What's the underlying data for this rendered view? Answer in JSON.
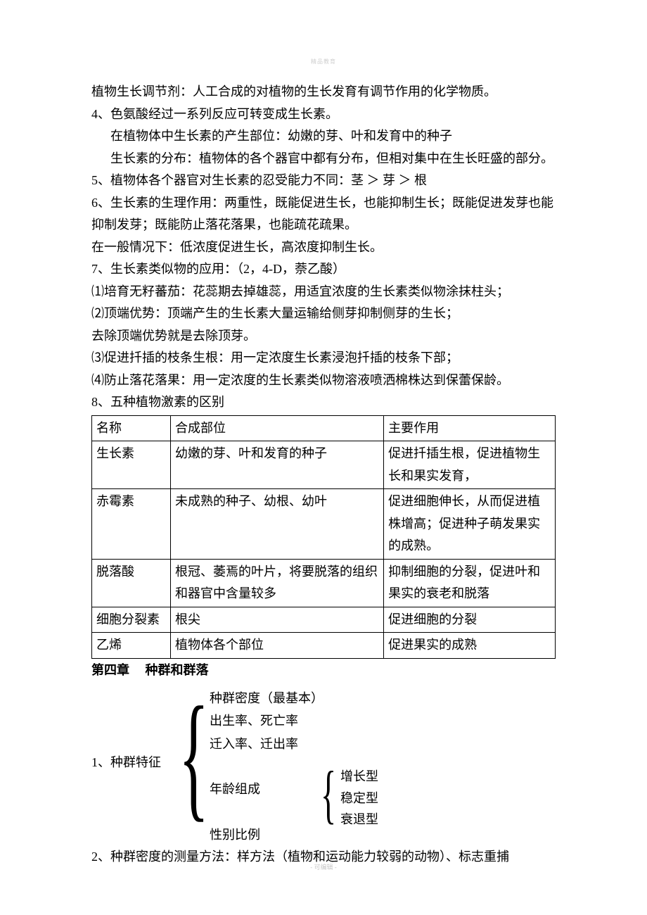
{
  "watermark_top": "精品教育",
  "watermark_bottom": "- 可编辑 -",
  "paragraphs": {
    "p1": "植物生长调节剂：人工合成的对植物的生长发育有调节作用的化学物质。",
    "p2": "4、色氨酸经过一系列反应可转变成生长素。",
    "p3": "在植物体中生长素的产生部位：幼嫩的芽、叶和发育中的种子",
    "p4": "生长素的分布：植物体的各个器官中都有分布，但相对集中在生长旺盛的部分。",
    "p5": "5、植物体各个器官对生长素的忍受能力不同：茎 ＞ 芽 ＞ 根",
    "p6": "6、生长素的生理作用：两重性，既能促进生长，也能抑制生长；既能促进发芽也能抑制发芽；既能防止落花落果，也能疏花疏果。",
    "p7": "在一般情况下：低浓度促进生长，高浓度抑制生长。",
    "p8": "7、生长素类似物的应用：（2，4-D，萘乙酸）",
    "p9": "⑴培育无籽蕃茄：花蕊期去掉雄蕊，用适宜浓度的生长素类似物涂抹柱头；",
    "p10": "⑵顶端优势：顶端产生的生长素大量运输给侧芽抑制侧芽的生长；",
    "p11": "去除顶端优势就是去除顶芽。",
    "p12": "⑶促进扦插的枝条生根：用一定浓度生长素浸泡扦插的枝条下部；",
    "p13": "⑷防止落花落果：用一定浓度的生长素类似物溶液喷洒棉株达到保蕾保龄。",
    "p14": "8、五种植物激素的区别",
    "chapter": "第四章　 种群和群落",
    "tree_label": "1、种群特征",
    "tree_item1": "种群密度（最基本）",
    "tree_item2": "出生率、死亡率",
    "tree_item3": "迁入率、迁出率",
    "tree_item4": "年龄组成",
    "tree_item5": "性别比例",
    "sub1": "增长型",
    "sub2": "稳定型",
    "sub3": "衰退型",
    "p15": "2、种群密度的测量方法：样方法（植物和运动能力较弱的动物）、标志重捕"
  },
  "table": {
    "header": {
      "c1": "名称",
      "c2": "合成部位",
      "c3": "主要作用"
    },
    "rows": [
      {
        "c1": "生长素",
        "c2": "幼嫩的芽、叶和发育的种子",
        "c3": "促进扦插生根，促进植物生长和果实发育，"
      },
      {
        "c1": "赤霉素",
        "c2": "未成熟的种子、幼根、幼叶",
        "c3": "促进细胞伸长，从而促进植株增高；促进种子萌发果实的成熟。"
      },
      {
        "c1": "脱落酸",
        "c2": "根冠、萎焉的叶片，将要脱落的组织和器官中含量较多",
        "c3": "抑制细胞的分裂，促进叶和果实的衰老和脱落"
      },
      {
        "c1": "细胞分裂素",
        "c2": "根尖",
        "c3": "促进细胞的分裂"
      },
      {
        "c1": "乙烯",
        "c2": "植物体各个部位",
        "c3": "促进果实的成熟"
      }
    ]
  }
}
